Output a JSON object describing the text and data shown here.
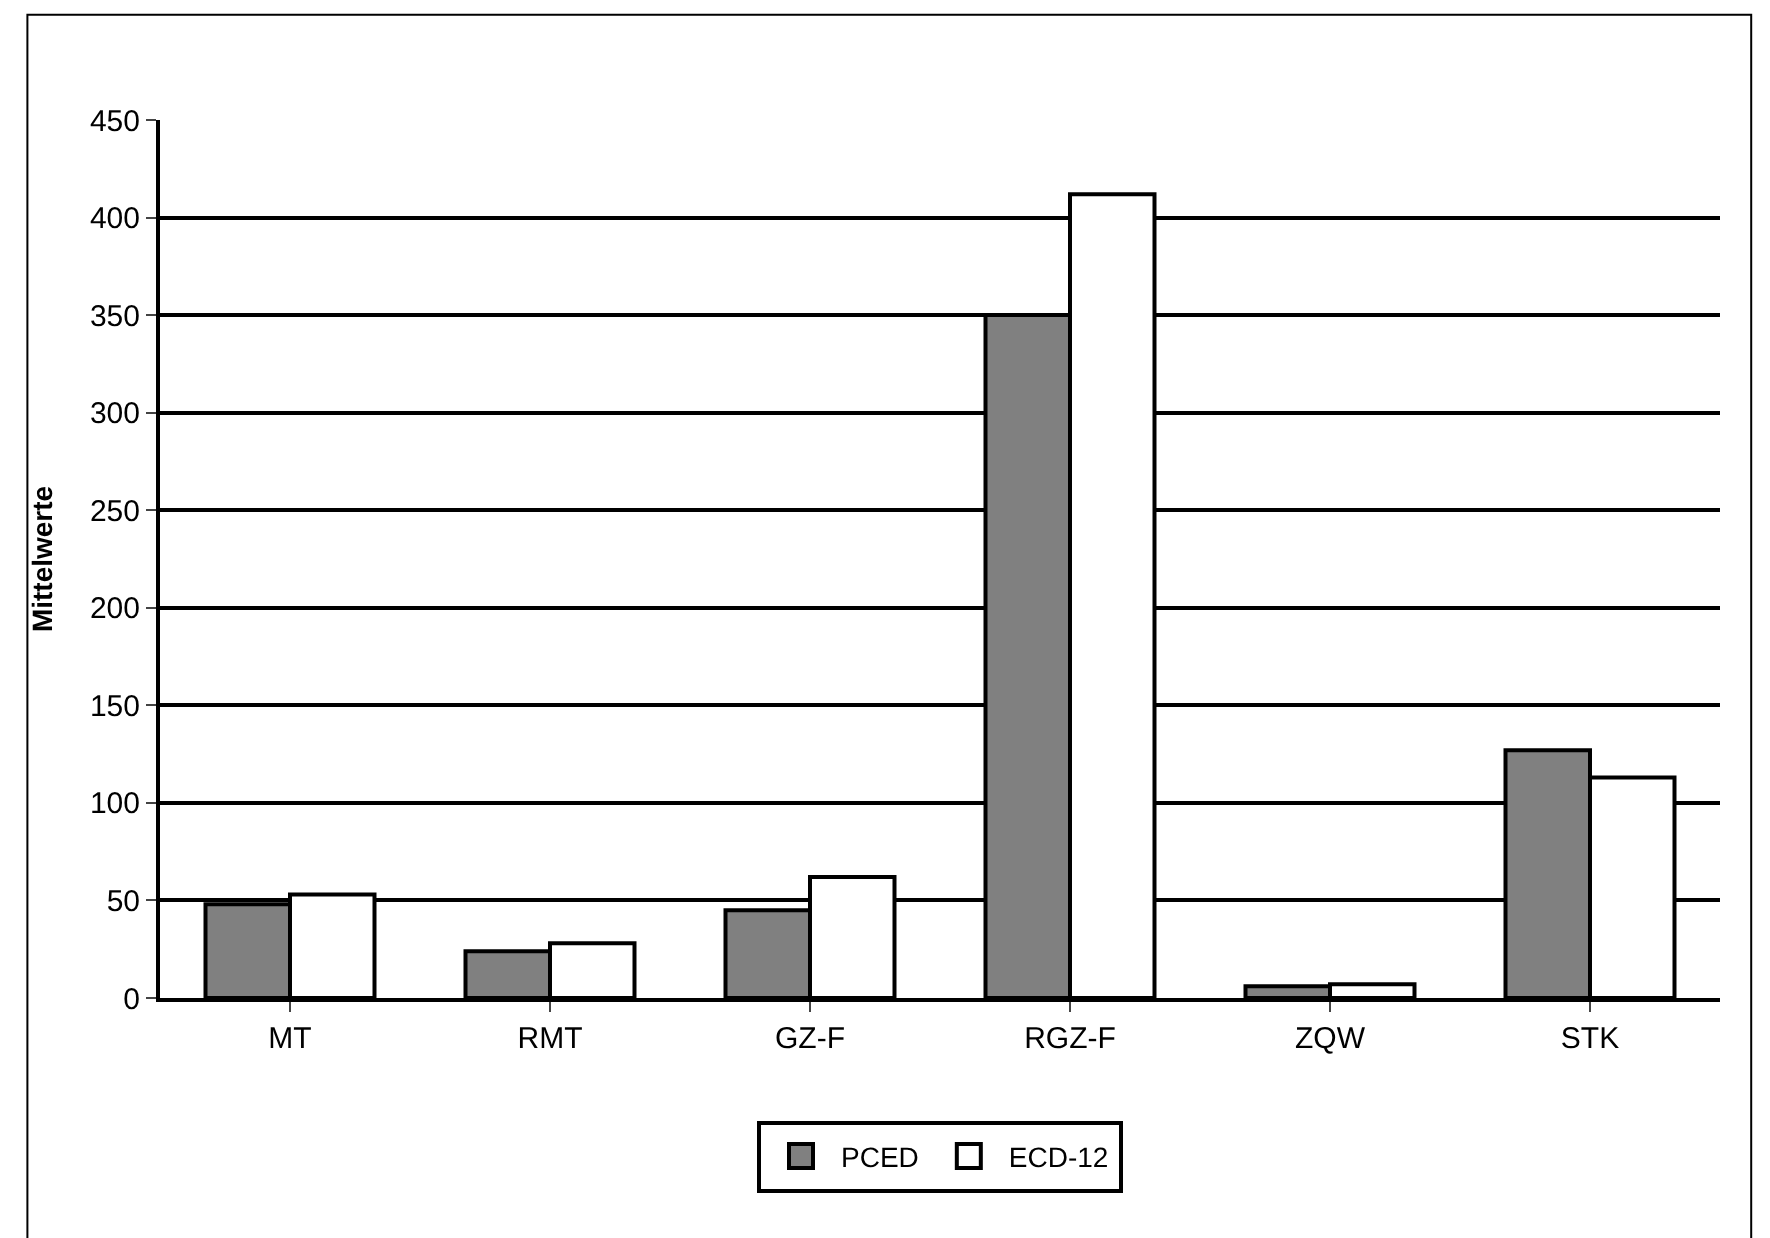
{
  "chart_data": {
    "type": "bar",
    "ylabel": "Mittelwerte",
    "categories": [
      "MT",
      "RMT",
      "GZ-F",
      "RGZ-F",
      "ZQW",
      "STK"
    ],
    "series": [
      {
        "name": "PCED",
        "color": "#808080",
        "values": [
          48,
          24,
          45,
          350,
          6,
          127
        ]
      },
      {
        "name": "ECD-12",
        "color": "#ffffff",
        "values": [
          53,
          28,
          62,
          412,
          7,
          113
        ]
      }
    ],
    "ylim": [
      0,
      450
    ],
    "yticks": [
      0,
      50,
      100,
      150,
      200,
      250,
      300,
      350,
      400,
      450
    ],
    "grid": "y",
    "legend": "bottom"
  }
}
